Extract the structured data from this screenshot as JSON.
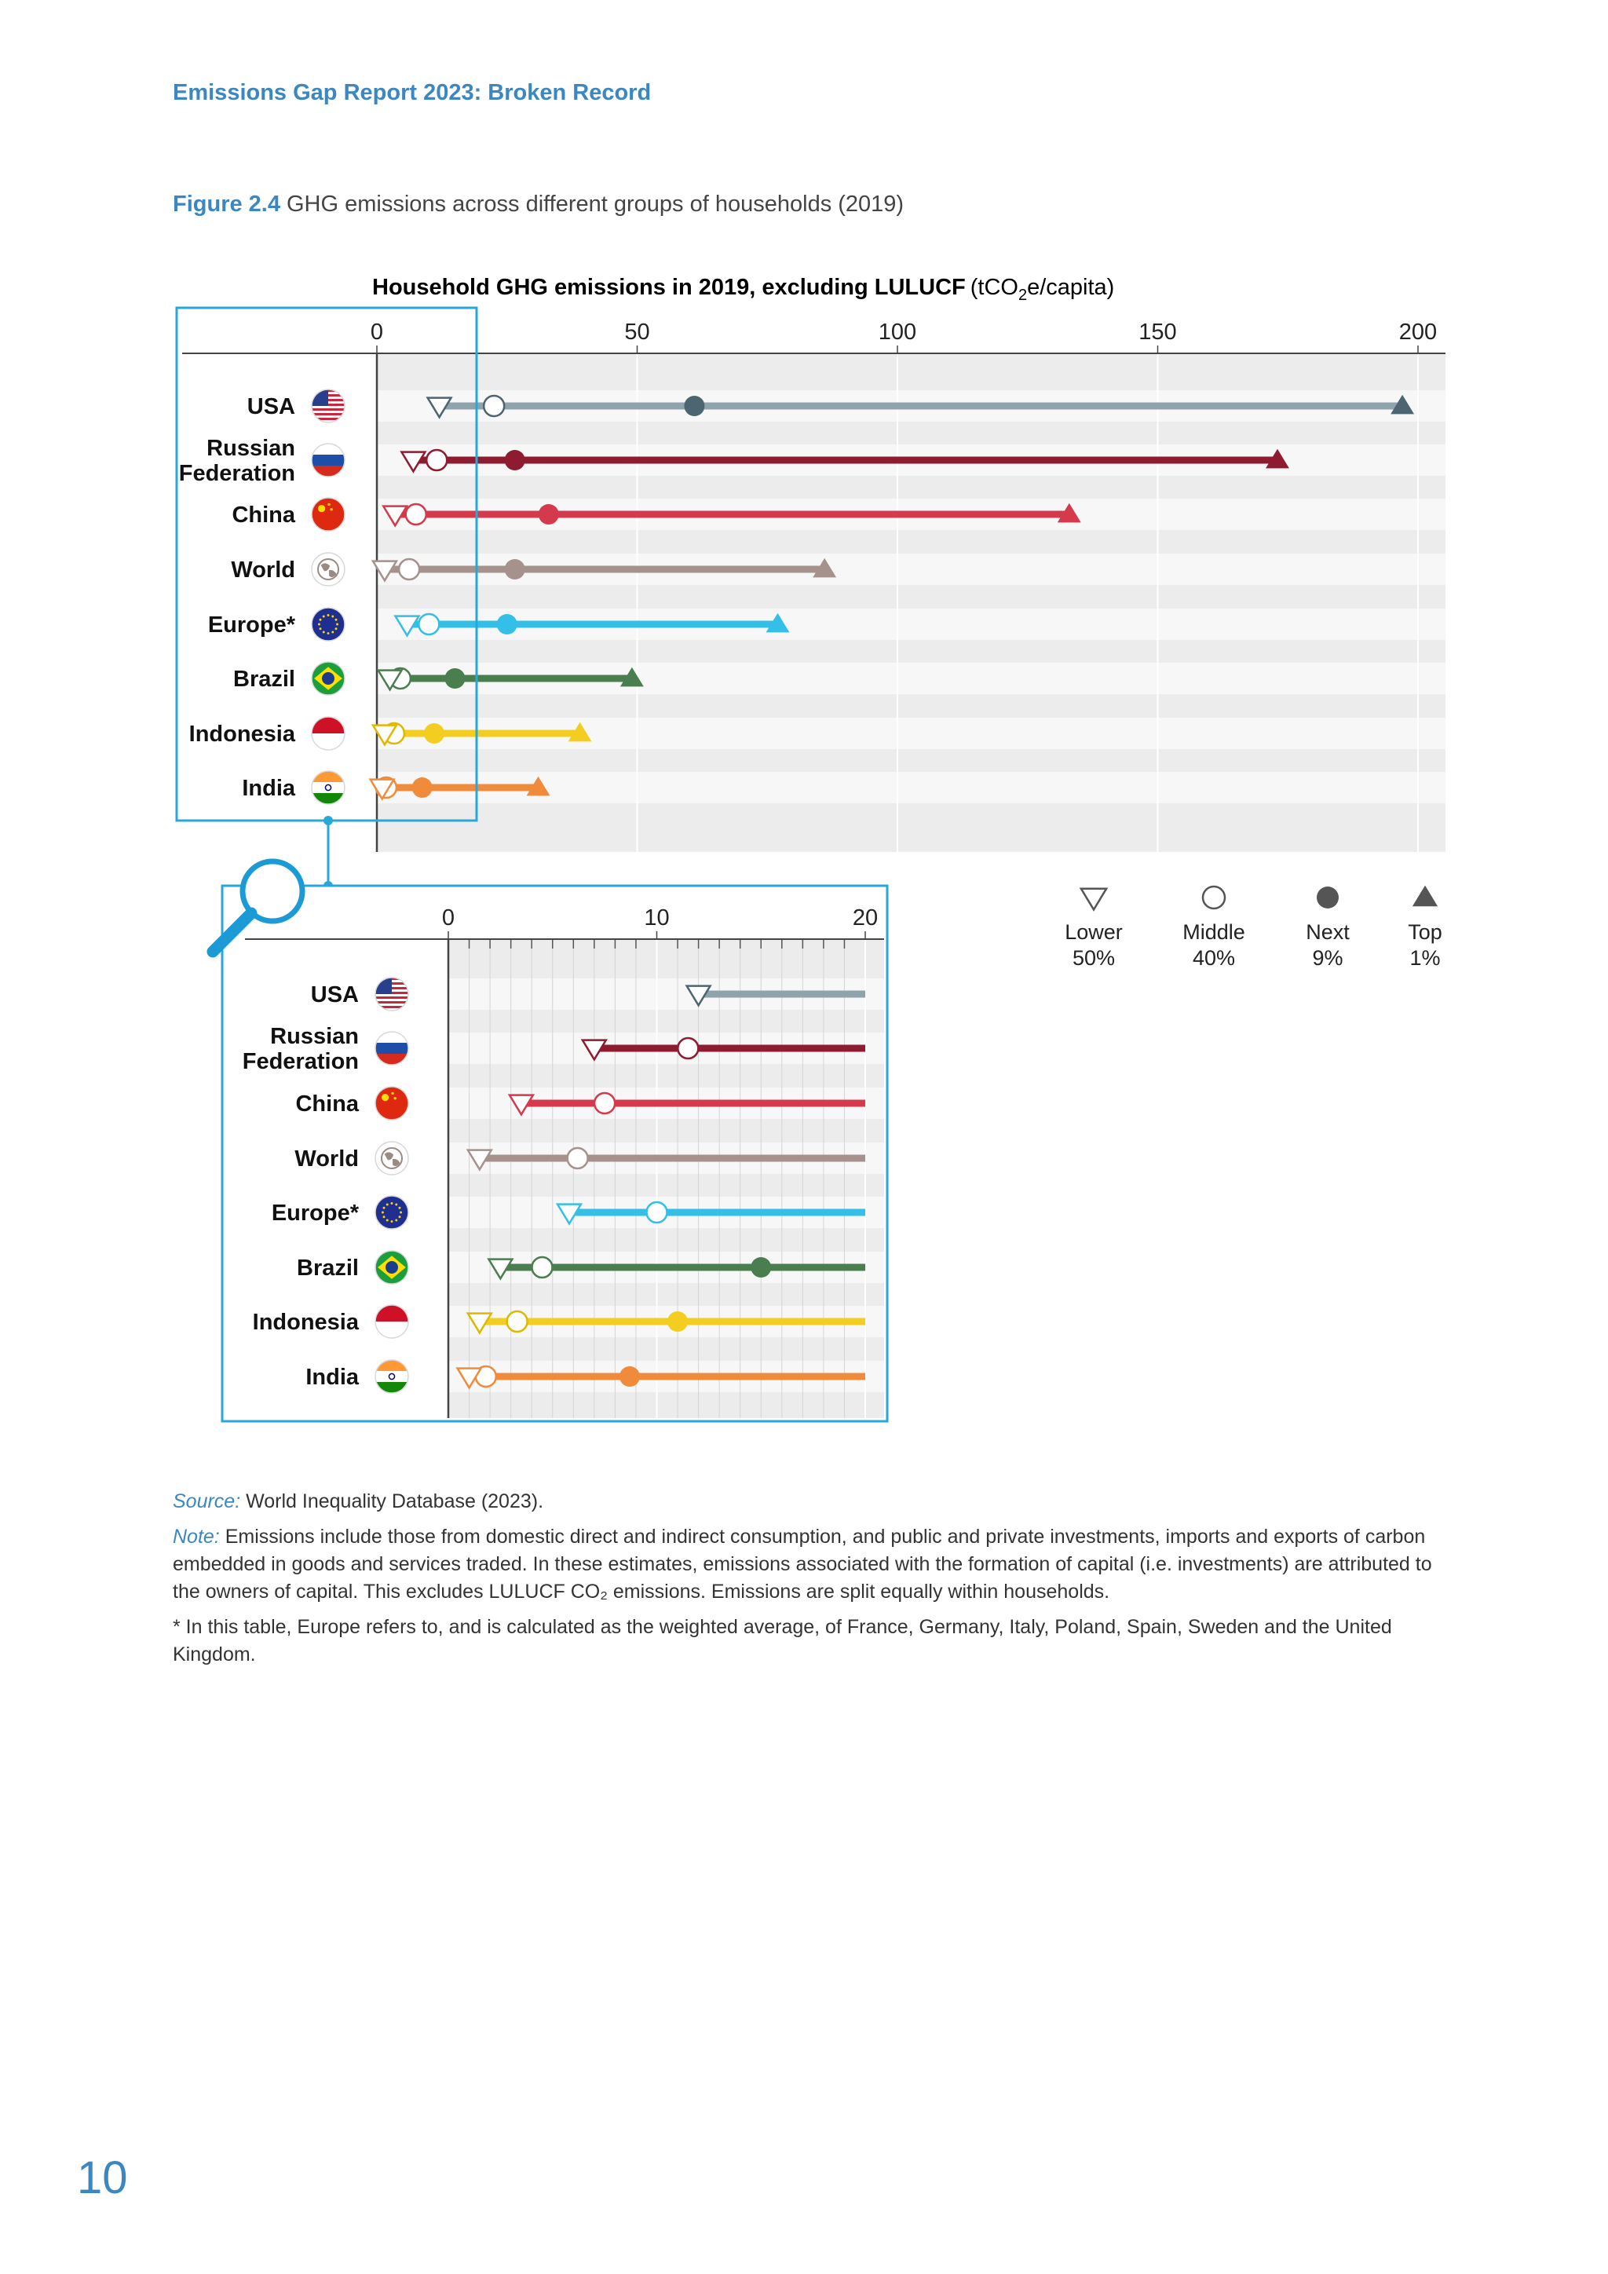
{
  "header": {
    "running_head": "Emissions Gap Report 2023: Broken Record"
  },
  "figure": {
    "number": "Figure 2.4",
    "caption": "GHG emissions across different groups of households (2019)"
  },
  "chart_data": [
    {
      "type": "dot-range",
      "title_bold": "Household GHG emissions in 2019, excluding LULUCF",
      "title_unit_prefix": "(tCO",
      "title_unit_sub": "2",
      "title_unit_suffix": "e/capita)",
      "xlim": [
        0,
        205
      ],
      "xticks": [
        0,
        50,
        100,
        150,
        200
      ],
      "grid": true,
      "legend": {
        "placement": "below-right",
        "items": [
          {
            "key": "lower",
            "marker": "triangle-down-open",
            "line1": "Lower",
            "line2": "50%"
          },
          {
            "key": "middle",
            "marker": "circle-open",
            "line1": "Middle",
            "line2": "40%"
          },
          {
            "key": "next",
            "marker": "circle-filled",
            "line1": "Next",
            "line2": "9%"
          },
          {
            "key": "top",
            "marker": "triangle-up-filled",
            "line1": "Top",
            "line2": "1%"
          }
        ]
      },
      "series": [
        {
          "label_lines": [
            "USA"
          ],
          "flag": "usa-flag-icon",
          "color": "#8fa3ac",
          "accent": "#4d6570",
          "lower": 12,
          "middle": 22.5,
          "next": 61,
          "top": 197
        },
        {
          "label_lines": [
            "Russian",
            "Federation"
          ],
          "flag": "russia-flag-icon",
          "color": "#8e1b30",
          "accent": "#8e1b30",
          "lower": 7,
          "middle": 11.5,
          "next": 26.5,
          "top": 173
        },
        {
          "label_lines": [
            "China"
          ],
          "flag": "china-flag-icon",
          "color": "#d43a4b",
          "accent": "#d43a4b",
          "lower": 3.5,
          "middle": 7.5,
          "next": 33,
          "top": 133
        },
        {
          "label_lines": [
            "World"
          ],
          "flag": "world-globe-icon",
          "color": "#a6928c",
          "accent": "#a6928c",
          "lower": 1.5,
          "middle": 6.2,
          "next": 26.5,
          "top": 86
        },
        {
          "label_lines": [
            "Europe*"
          ],
          "flag": "eu-flag-icon",
          "color": "#33bfe8",
          "accent": "#33bfe8",
          "lower": 5.8,
          "middle": 10,
          "next": 25,
          "top": 77
        },
        {
          "label_lines": [
            "Brazil"
          ],
          "flag": "brazil-flag-icon",
          "color": "#4a7e4f",
          "accent": "#4a7e4f",
          "lower": 2.5,
          "middle": 4.5,
          "next": 15,
          "top": 49
        },
        {
          "label_lines": [
            "Indonesia"
          ],
          "flag": "indonesia-flag-icon",
          "color": "#f3cd1f",
          "accent": "#f3cd1f",
          "lower": 1.5,
          "middle": 3.3,
          "next": 11,
          "top": 39
        },
        {
          "label_lines": [
            "India"
          ],
          "flag": "india-flag-icon",
          "color": "#f08b3c",
          "accent": "#f08b3c",
          "lower": 1,
          "middle": 1.8,
          "next": 8.7,
          "top": 31
        }
      ]
    },
    {
      "type": "dot-range",
      "subtitle": "inset-zoom",
      "xlim": [
        0,
        21
      ],
      "xticks": [
        0,
        10,
        20
      ],
      "minor_ticks_every": 1,
      "grid": true,
      "series_ref": "same as first chart, values clipped at 21"
    }
  ],
  "source": {
    "label": "Source:",
    "text": "World Inequality Database (2023)."
  },
  "note": {
    "label": "Note:",
    "text": "Emissions include those from domestic direct and indirect consumption, and public and private investments, imports and exports of carbon embedded in goods and services traded. In these estimates, emissions associated with the formation of capital (i.e. investments) are attributed to the owners of capital. This excludes LULUCF CO₂ emissions. Emissions are split equally within households."
  },
  "footnote": "* In this table, Europe refers to, and is calculated as the weighted average, of France, Germany, Italy, Poland, Spain, Sweden and the United Kingdom.",
  "page_number": "10"
}
